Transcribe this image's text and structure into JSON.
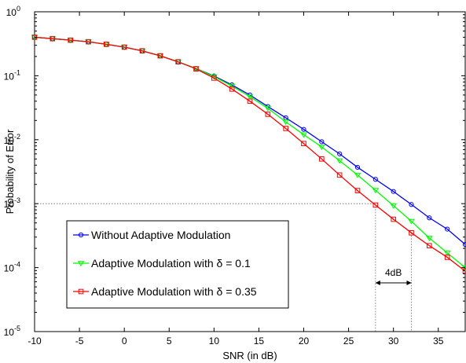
{
  "chart_data": {
    "type": "line",
    "xlabel": "SNR (in dB)",
    "ylabel": "Probability of Error",
    "xlim": [
      -10,
      38
    ],
    "ylim": [
      1e-05,
      1
    ],
    "yscale": "log",
    "grid": false,
    "legend_placement": "bottom-left",
    "x_ticks": [
      "-10",
      "-5",
      "0",
      "5",
      "10",
      "15",
      "20",
      "25",
      "30",
      "35"
    ],
    "x_tick_values": [
      -10,
      -5,
      0,
      5,
      10,
      15,
      20,
      25,
      30,
      35
    ],
    "y_ticks": [
      {
        "base": "10",
        "exp": "0",
        "value": 1
      },
      {
        "base": "10",
        "exp": "-1",
        "value": 0.1
      },
      {
        "base": "10",
        "exp": "-2",
        "value": 0.01
      },
      {
        "base": "10",
        "exp": "-3",
        "value": 0.001
      },
      {
        "base": "10",
        "exp": "-4",
        "value": 0.0001
      },
      {
        "base": "10",
        "exp": "-5",
        "value": 1e-05
      }
    ],
    "x": [
      -10,
      -8,
      -6,
      -4,
      -2,
      0,
      2,
      4,
      6,
      8,
      10,
      12,
      14,
      16,
      18,
      20,
      22,
      24,
      26,
      28,
      30,
      32,
      34,
      36,
      38
    ],
    "series": [
      {
        "name": "Without Adaptive Modulation",
        "color": "#0000ff",
        "marker": "circle",
        "values": [
          0.4,
          0.38,
          0.36,
          0.34,
          0.31,
          0.28,
          0.245,
          0.205,
          0.165,
          0.13,
          0.099,
          0.072,
          0.05,
          0.033,
          0.022,
          0.0145,
          0.0093,
          0.006,
          0.0037,
          0.0024,
          0.00155,
          0.00097,
          0.0006,
          0.0004,
          0.00023
        ]
      },
      {
        "name": "Adaptive Modulation with δ = 0.1",
        "color": "#00ff00",
        "marker": "triangle-down",
        "values": [
          0.4,
          0.38,
          0.36,
          0.34,
          0.31,
          0.28,
          0.245,
          0.205,
          0.165,
          0.13,
          0.097,
          0.069,
          0.047,
          0.031,
          0.019,
          0.012,
          0.0077,
          0.0047,
          0.0028,
          0.00162,
          0.00093,
          0.00053,
          0.00029,
          0.00017,
          0.0001
        ]
      },
      {
        "name": "Adaptive Modulation with δ = 0.35",
        "color": "#ff0000",
        "marker": "square",
        "values": [
          0.4,
          0.38,
          0.36,
          0.34,
          0.31,
          0.28,
          0.245,
          0.205,
          0.165,
          0.128,
          0.092,
          0.062,
          0.04,
          0.025,
          0.015,
          0.0087,
          0.005,
          0.0028,
          0.0016,
          0.00095,
          0.00057,
          0.00035,
          0.00022,
          0.000145,
          8.8e-05
        ]
      }
    ],
    "reference_lines": {
      "y": 0.001,
      "x": [
        28,
        32
      ]
    },
    "annotations": [
      {
        "text": "4dB",
        "from_x": 28,
        "to_x": 32,
        "y": 0.00015
      }
    ]
  }
}
